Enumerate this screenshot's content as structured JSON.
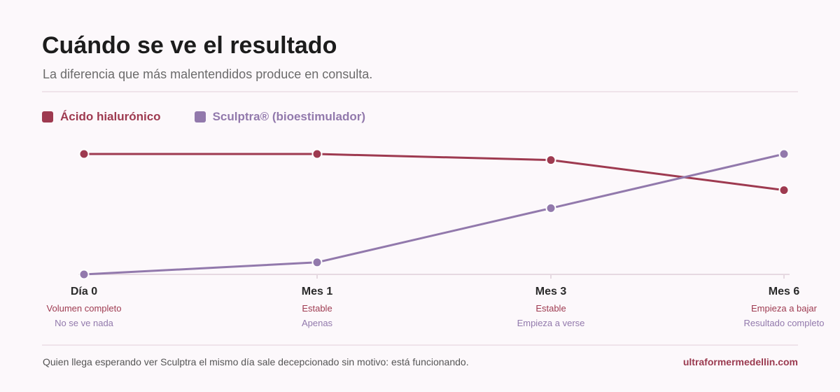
{
  "header": {
    "title": "Cuándo se ve el resultado",
    "subtitle": "La diferencia que más malentendidos produce en consulta."
  },
  "colors": {
    "ah": "#9e3a50",
    "sculptra": "#9279ac"
  },
  "footer": {
    "note": "Quien llega esperando ver Sculptra el mismo día sale decepcionado sin motivo: está funcionando.",
    "brand": "ultraformermedellin.com"
  },
  "chart_data": {
    "type": "line",
    "categories": [
      "Día 0",
      "Mes 1",
      "Mes 3",
      "Mes 6"
    ],
    "ylim": [
      0,
      100
    ],
    "grid": false,
    "legend_position": "top-left",
    "series": [
      {
        "name": "Ácido hialurónico",
        "color": "#9e3a50",
        "values": [
          100,
          100,
          95,
          70
        ],
        "labels": [
          "Volumen completo",
          "Estable",
          "Estable",
          "Empieza a bajar"
        ]
      },
      {
        "name": "Sculptra® (bioestimulador)",
        "color": "#9279ac",
        "values": [
          0,
          10,
          55,
          100
        ],
        "labels": [
          "No se ve nada",
          "Apenas",
          "Empieza a verse",
          "Resultado completo"
        ]
      }
    ]
  }
}
